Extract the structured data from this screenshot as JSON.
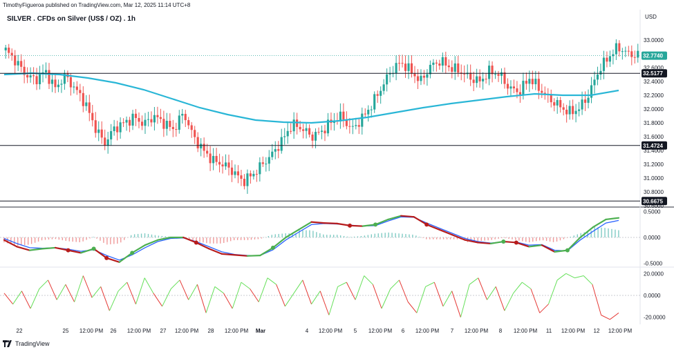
{
  "header": {
    "published_line": "TimothyFigueroa published on TradingView.com, Mar 12, 2025 11:14 UTC+8",
    "title": "SILVER . CFDs on Silver (US$ / OZ) . 1h",
    "currency": "USD"
  },
  "footer": {
    "brand": "TradingView"
  },
  "colors": {
    "up": "#26a69a",
    "down": "#ef5350",
    "ma": "#29b6d6",
    "osc_fast": "#4caf50",
    "osc_fast_down": "#b71c1c",
    "osc_slow": "#2962ff",
    "last_price_tag": "#26a69a",
    "level_tag": "#131722",
    "rsi_up": "#66e05a",
    "rsi_down": "#e53935"
  },
  "chart_data": [
    {
      "type": "candlestick",
      "panel": "price",
      "title": "SILVER . CFDs on Silver (US$ / OZ) . 1h",
      "y_ticks": [
        33.0,
        32.6,
        32.4,
        32.2,
        32.0,
        31.8,
        31.6,
        31.4,
        31.2,
        31.0,
        30.8,
        30.6
      ],
      "y_range": [
        30.6,
        33.2
      ],
      "last_price": 32.774,
      "last_price_label": "32.7740",
      "horizontal_levels": [
        {
          "value": 32.5177,
          "label": "32.5177"
        },
        {
          "value": 31.4724,
          "label": "31.4724"
        },
        {
          "value": 30.6675,
          "label": "30.6675"
        }
      ],
      "x_tick_labels": [
        "22",
        "25",
        "12:00 PM",
        "26",
        "12:00 PM",
        "27",
        "12:00 PM",
        "28",
        "12:00 PM",
        "Mar",
        "4",
        "12:00 PM",
        "5",
        "12:00 PM",
        "6",
        "12:00 PM",
        "7",
        "12:00 PM",
        "8",
        "12:00 PM",
        "11",
        "12:00 PM",
        "12",
        "12:00 PM"
      ],
      "close_path": [
        32.85,
        32.7,
        32.5,
        32.42,
        32.55,
        32.3,
        32.48,
        32.3,
        32.1,
        31.75,
        31.5,
        31.72,
        31.8,
        31.88,
        31.78,
        31.9,
        31.8,
        31.7,
        31.95,
        31.6,
        31.4,
        31.25,
        31.2,
        31.1,
        30.95,
        31.05,
        31.2,
        31.35,
        31.55,
        31.78,
        31.72,
        31.6,
        31.68,
        31.82,
        31.9,
        31.7,
        31.85,
        32.05,
        32.3,
        32.55,
        32.68,
        32.55,
        32.4,
        32.62,
        32.7,
        32.6,
        32.55,
        32.45,
        32.4,
        32.55,
        32.5,
        32.3,
        32.25,
        32.45,
        32.3,
        32.15,
        32.05,
        31.95,
        32.0,
        32.2,
        32.55,
        32.75,
        32.9,
        32.8,
        32.774
      ],
      "series": [
        {
          "name": "MA",
          "values": [
            32.5,
            32.52,
            32.5,
            32.45,
            32.38,
            32.28,
            32.15,
            32.02,
            31.92,
            31.84,
            31.81,
            31.8,
            31.83,
            31.88,
            31.95,
            32.02,
            32.08,
            32.13,
            32.18,
            32.22,
            32.2,
            32.2,
            32.27
          ]
        }
      ]
    },
    {
      "type": "line",
      "panel": "oscillator",
      "y_ticks": [
        0.5,
        0.0,
        -0.5
      ],
      "y_tick_labels": [
        "0.5000",
        "0.0000",
        "-0.5000"
      ],
      "y_range": [
        -0.55,
        0.55
      ],
      "series": [
        {
          "values": [
            -0.05,
            -0.18,
            -0.25,
            -0.22,
            -0.2,
            -0.25,
            -0.3,
            -0.22,
            -0.4,
            -0.48,
            -0.3,
            -0.15,
            -0.05,
            0.0,
            0.0,
            -0.1,
            -0.22,
            -0.32,
            -0.34,
            -0.36,
            -0.35,
            -0.2,
            0.0,
            0.15,
            0.3,
            0.28,
            0.27,
            0.23,
            0.22,
            0.25,
            0.35,
            0.42,
            0.4,
            0.25,
            0.15,
            0.05,
            -0.05,
            -0.1,
            -0.12,
            -0.08,
            -0.1,
            -0.18,
            -0.15,
            -0.28,
            -0.25,
            0.0,
            0.2,
            0.35,
            0.38
          ]
        },
        {
          "values": [
            -0.02,
            -0.12,
            -0.2,
            -0.21,
            -0.2,
            -0.23,
            -0.27,
            -0.24,
            -0.35,
            -0.44,
            -0.34,
            -0.2,
            -0.08,
            -0.02,
            -0.01,
            -0.08,
            -0.18,
            -0.28,
            -0.33,
            -0.35,
            -0.35,
            -0.24,
            -0.05,
            0.1,
            0.25,
            0.27,
            0.26,
            0.24,
            0.22,
            0.23,
            0.32,
            0.4,
            0.39,
            0.28,
            0.18,
            0.08,
            -0.02,
            -0.08,
            -0.11,
            -0.09,
            -0.09,
            -0.15,
            -0.14,
            -0.25,
            -0.26,
            -0.05,
            0.12,
            0.28,
            0.33
          ]
        }
      ]
    },
    {
      "type": "line",
      "panel": "momentum",
      "y_ticks": [
        20,
        0,
        -20
      ],
      "y_tick_labels": [
        "20.0000",
        "0.0000",
        "-20.0000"
      ],
      "y_range": [
        -24,
        24
      ],
      "series": [
        {
          "values": [
            2,
            -8,
            4,
            -12,
            6,
            14,
            -4,
            10,
            -6,
            18,
            -2,
            8,
            -14,
            4,
            12,
            -8,
            16,
            2,
            -10,
            6,
            14,
            -4,
            10,
            -16,
            8,
            2,
            -12,
            12,
            6,
            -6,
            16,
            10,
            -10,
            2,
            14,
            -8,
            4,
            -18,
            8,
            12,
            -4,
            18,
            10,
            -12,
            6,
            14,
            -6,
            -16,
            8,
            12,
            -10,
            4,
            -20,
            10,
            16,
            -4,
            8,
            -14,
            2,
            12,
            6,
            -16,
            -8,
            14,
            20,
            16,
            18,
            10,
            -18,
            -22,
            -16
          ]
        }
      ]
    }
  ]
}
